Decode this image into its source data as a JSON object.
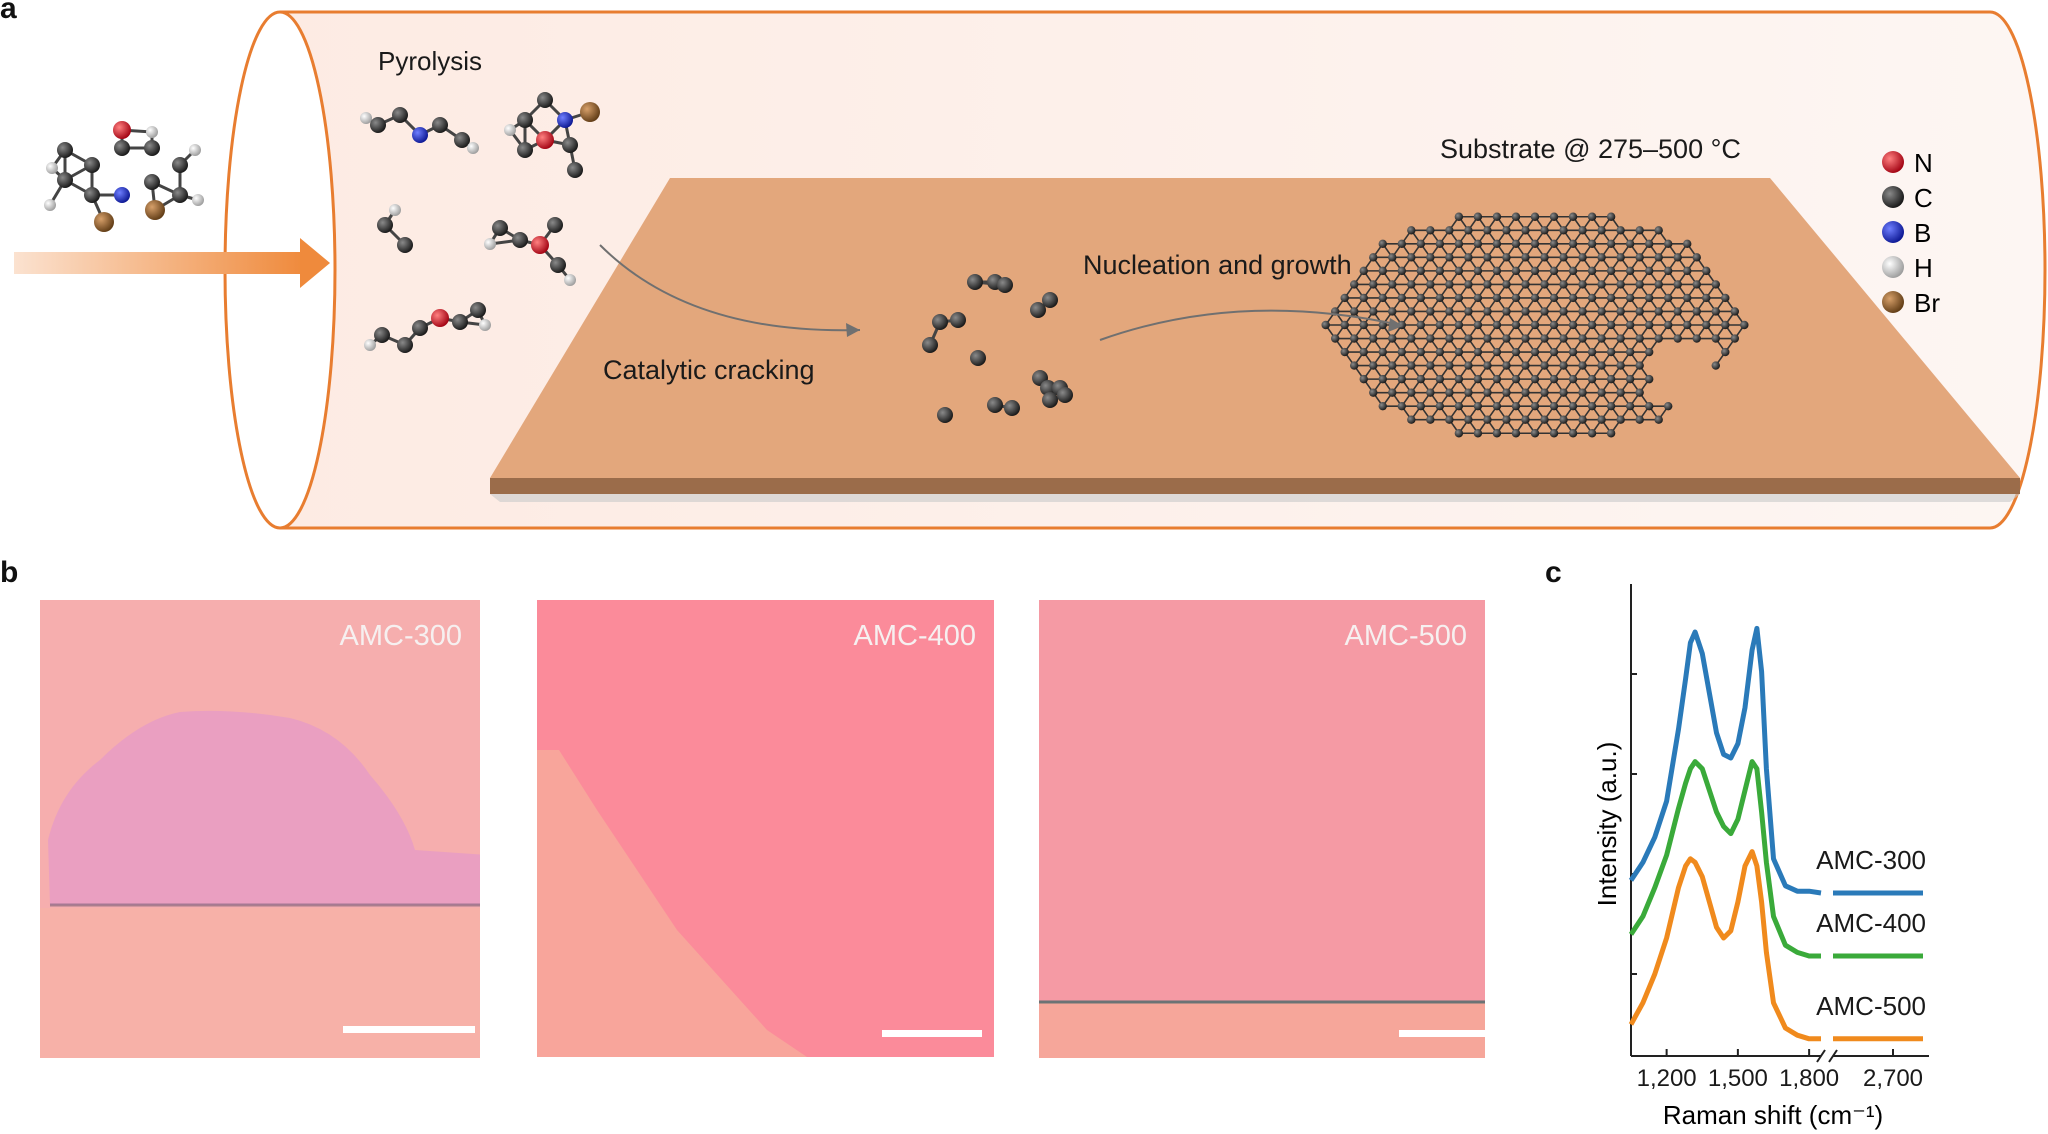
{
  "panel_a": {
    "letter": "a",
    "labels": {
      "pyrolysis": "Pyrolysis",
      "catalytic": "Catalytic cracking",
      "nucleation": "Nucleation and growth",
      "substrate": "Substrate @ 275–500 °C"
    },
    "legend": [
      {
        "symbol": "N",
        "color": "#d0101a"
      },
      {
        "symbol": "C",
        "color": "#2a2a2a"
      },
      {
        "symbol": "B",
        "color": "#1020c0"
      },
      {
        "symbol": "H",
        "color": "#d8d8d8"
      },
      {
        "symbol": "Br",
        "color": "#8a5a25"
      }
    ],
    "colors": {
      "tube": "#e87d30",
      "substrate": "#e3a77c",
      "arrow": "#ef8a3c"
    }
  },
  "panel_b": {
    "letter": "b",
    "images": [
      {
        "label": "AMC-300",
        "color": "#f5a7a9"
      },
      {
        "label": "AMC-400",
        "color": "#fb8b9a"
      },
      {
        "label": "AMC-500",
        "color": "#f59aa4"
      }
    ]
  },
  "panel_c": {
    "letter": "c",
    "chart_data": {
      "type": "line",
      "xlabel": "Raman shift (cm⁻¹)",
      "ylabel": "Intensity (a.u.)",
      "xticks": [
        "1,200",
        "1,500",
        "1,800",
        "2,700"
      ],
      "axis_break": true,
      "series": [
        {
          "name": "AMC-300",
          "color": "#2a7ab9",
          "x": [
            1050,
            1100,
            1150,
            1200,
            1250,
            1280,
            1300,
            1320,
            1350,
            1380,
            1410,
            1440,
            1470,
            1500,
            1530,
            1560,
            1580,
            1600,
            1620,
            1650,
            1700,
            1750,
            1800,
            1850,
            2500,
            2600,
            2700,
            2800
          ],
          "y": [
            0.04,
            0.09,
            0.16,
            0.26,
            0.46,
            0.6,
            0.7,
            0.73,
            0.67,
            0.56,
            0.45,
            0.39,
            0.38,
            0.42,
            0.52,
            0.68,
            0.74,
            0.62,
            0.35,
            0.1,
            0.025,
            0.01,
            0.01,
            0.005,
            0.005,
            0.005,
            0.005,
            0.005
          ]
        },
        {
          "name": "AMC-400",
          "color": "#3aaa3a",
          "x": [
            1050,
            1100,
            1150,
            1200,
            1250,
            1280,
            1300,
            1320,
            1350,
            1380,
            1410,
            1440,
            1470,
            1500,
            1530,
            1560,
            1580,
            1600,
            1620,
            1650,
            1700,
            1750,
            1800,
            1850,
            2500,
            2600,
            2700,
            2800
          ],
          "y": [
            0.1,
            0.15,
            0.23,
            0.32,
            0.45,
            0.52,
            0.56,
            0.58,
            0.56,
            0.5,
            0.44,
            0.4,
            0.38,
            0.42,
            0.5,
            0.58,
            0.56,
            0.44,
            0.3,
            0.15,
            0.07,
            0.05,
            0.04,
            0.04,
            0.04,
            0.04,
            0.04,
            0.04
          ]
        },
        {
          "name": "AMC-500",
          "color": "#f08a1d",
          "x": [
            1050,
            1100,
            1150,
            1200,
            1250,
            1280,
            1300,
            1320,
            1350,
            1380,
            1410,
            1440,
            1470,
            1500,
            1530,
            1560,
            1580,
            1600,
            1620,
            1650,
            1700,
            1750,
            1800,
            1850,
            2500,
            2600,
            2700,
            2800
          ],
          "y": [
            0.06,
            0.12,
            0.2,
            0.3,
            0.44,
            0.5,
            0.52,
            0.51,
            0.47,
            0.4,
            0.33,
            0.3,
            0.32,
            0.4,
            0.5,
            0.54,
            0.5,
            0.4,
            0.26,
            0.12,
            0.05,
            0.03,
            0.02,
            0.02,
            0.02,
            0.02,
            0.02,
            0.02
          ]
        }
      ]
    }
  }
}
